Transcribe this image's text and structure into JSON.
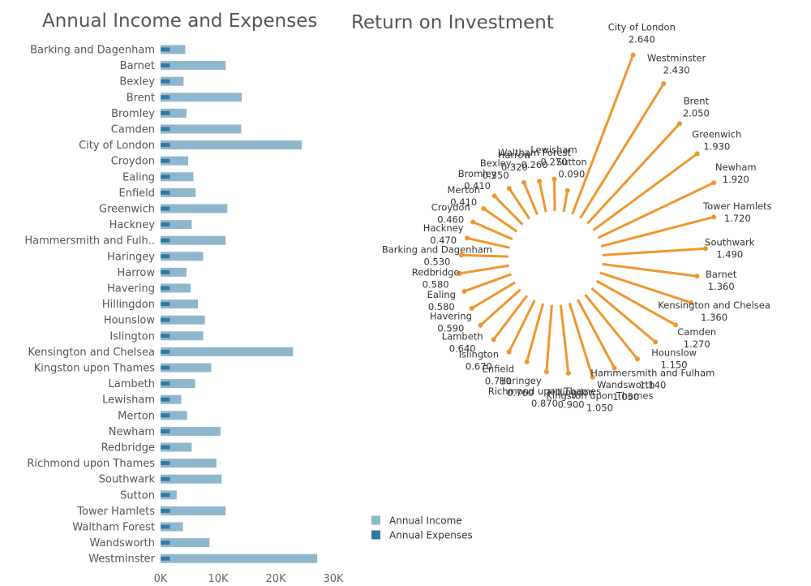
{
  "colors": {
    "income": "#8fb7cc",
    "expenses": "#2e7aa1",
    "roi": "#f0962e"
  },
  "chart_data": [
    {
      "type": "bar",
      "title": "Annual Income and Expenses",
      "xlim": [
        0,
        30000
      ],
      "xticks": [
        0,
        10000,
        20000,
        30000
      ],
      "xtick_labels": [
        "0K",
        "10K",
        "20K",
        "30K"
      ],
      "categories": [
        "Barking and Dagenham",
        "Barnet",
        "Bexley",
        "Brent",
        "Bromley",
        "Camden",
        "City of London",
        "Croydon",
        "Ealing",
        "Enfield",
        "Greenwich",
        "Hackney",
        "Hammersmith and Fulh..",
        "Haringey",
        "Harrow",
        "Havering",
        "Hillingdon",
        "Hounslow",
        "Islington",
        "Kensington and Chelsea",
        "Kingston upon Thames",
        "Lambeth",
        "Lewisham",
        "Merton",
        "Newham",
        "Redbridge",
        "Richmond upon Thames",
        "Southwark",
        "Sutton",
        "Tower Hamlets",
        "Waltham Forest",
        "Wandsworth",
        "Westminster"
      ],
      "series": [
        {
          "name": "Annual Income",
          "values": [
            4300,
            11300,
            4000,
            14100,
            4500,
            14000,
            24500,
            4800,
            5700,
            6100,
            11600,
            5400,
            11300,
            7400,
            4500,
            5200,
            6500,
            7700,
            7400,
            23000,
            8800,
            6000,
            3600,
            4600,
            10400,
            5400,
            9700,
            10600,
            2800,
            11300,
            3900,
            8500,
            27200
          ]
        },
        {
          "name": "Annual Expenses",
          "values": [
            1600,
            1600,
            1600,
            1600,
            1600,
            1600,
            1600,
            1600,
            1600,
            1600,
            1600,
            1600,
            1600,
            1600,
            1600,
            1600,
            1600,
            1600,
            1600,
            1600,
            1600,
            1600,
            1600,
            1600,
            1600,
            1600,
            1600,
            1600,
            1600,
            1600,
            1600,
            1600,
            1600
          ]
        }
      ],
      "legend": [
        {
          "label": "Annual Income",
          "series": "income"
        },
        {
          "label": "Annual Expenses",
          "series": "expenses"
        }
      ],
      "legend_placement": "bottom-center"
    },
    {
      "type": "radial-bar",
      "title": "Return on Investment",
      "categories": [
        "Sutton",
        "Lewisham",
        "Waltham Forest",
        "Harrow",
        "Bexley",
        "Bromley",
        "Merton",
        "Croydon",
        "Hackney",
        "Barking and Dagenham",
        "Redbridge",
        "Ealing",
        "Havering",
        "Lambeth",
        "Islington",
        "Enfield",
        "Haringey",
        "Richmond upon Thames",
        "Hillingdon",
        "Kingston upon Thames",
        "Wandsworth",
        "Hammersmith and Fulham",
        "Hounslow",
        "Camden",
        "Kensington and Chelsea",
        "Barnet",
        "Southwark",
        "Tower Hamlets",
        "Newham",
        "Greenwich",
        "Brent",
        "Westminster",
        "City of London"
      ],
      "values": [
        0.09,
        0.27,
        0.26,
        0.32,
        0.35,
        0.41,
        0.41,
        0.46,
        0.47,
        0.53,
        0.58,
        0.58,
        0.59,
        0.64,
        0.67,
        0.71,
        0.76,
        0.87,
        0.9,
        1.05,
        1.05,
        1.14,
        1.15,
        1.27,
        1.36,
        1.36,
        1.49,
        1.72,
        1.92,
        1.93,
        2.05,
        2.43,
        2.64
      ],
      "value_labels": [
        "0.090",
        "0.270",
        "0.260",
        "0.320",
        "0.350",
        "0.410",
        "0.410",
        "0.460",
        "0.470",
        "0.530",
        "0.580",
        "0.580",
        "0.590",
        "0.640",
        "0.670",
        "0.710",
        "0.760",
        "0.870",
        "0.900",
        "1.050",
        "1.050",
        "1.140",
        "1.150",
        "1.270",
        "1.360",
        "1.360",
        "1.490",
        "1.720",
        "1.920",
        "1.930",
        "2.050",
        "2.430",
        "2.640"
      ]
    }
  ]
}
